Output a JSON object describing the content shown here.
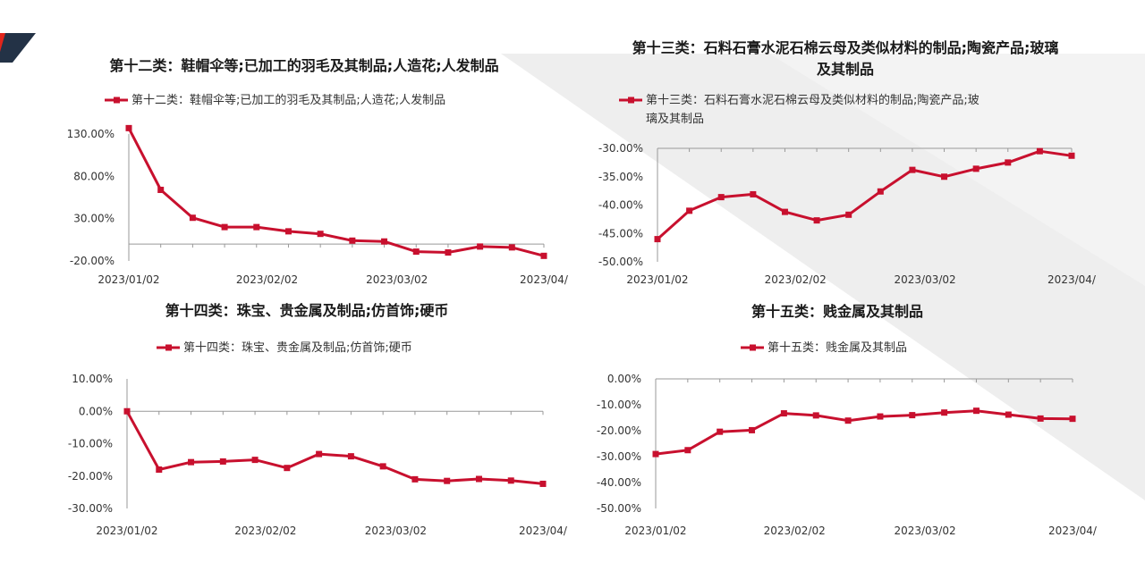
{
  "theme": {
    "series_color": "#c8102e",
    "accent_dark": "#233246",
    "accent_red": "#e1251b"
  },
  "chart_data": [
    {
      "type": "line",
      "title": [
        "第十二类：鞋帽伞等;已加工的羽毛及其制品;人造花;人发制品"
      ],
      "legend": [
        "第十二类：鞋帽伞等;已加工的羽毛及其制品;人造花;人发制品"
      ],
      "x": [
        "2023/01/02",
        "2023/01/09",
        "2023/01/16",
        "2023/01/23",
        "2023/01/30",
        "2023/02/06",
        "2023/02/13",
        "2023/02/20",
        "2023/02/27",
        "2023/03/06",
        "2023/03/13",
        "2023/03/20",
        "2023/03/27",
        "2023/04/03"
      ],
      "x_tick_labels": [
        "2023/01/02",
        "2023/02/02",
        "2023/03/02",
        "2023/04/"
      ],
      "series": [
        {
          "name": "第十二类：鞋帽伞等;已加工的羽毛及其制品;人造花;人发制品",
          "values": [
            137,
            64,
            31,
            20,
            20,
            15,
            12,
            4,
            3,
            -9,
            -10,
            -3,
            -4,
            -14
          ]
        }
      ],
      "ylim": [
        -20,
        130
      ],
      "y_ticks": [
        130,
        80,
        30,
        -20
      ],
      "y_tick_labels": [
        "130.00%",
        "80.00%",
        "30.00%",
        "-20.00%"
      ],
      "baseline": 0
    },
    {
      "type": "line",
      "title": [
        "第十三类：石料石膏水泥石棉云母及类似材料的制品;陶瓷产品;玻璃",
        "及其制品"
      ],
      "legend": [
        "第十三类：石料石膏水泥石棉云母及类似材料的制品;陶瓷产品;玻",
        "璃及其制品"
      ],
      "x": [
        "2023/01/02",
        "2023/01/09",
        "2023/01/16",
        "2023/01/23",
        "2023/01/30",
        "2023/02/06",
        "2023/02/13",
        "2023/02/20",
        "2023/02/27",
        "2023/03/06",
        "2023/03/13",
        "2023/03/20",
        "2023/03/27",
        "2023/04/03"
      ],
      "x_tick_labels": [
        "2023/01/02",
        "2023/02/02",
        "2023/03/02",
        "2023/04/"
      ],
      "series": [
        {
          "name": "第十三类：石料石膏水泥石棉云母及类似材料的制品;陶瓷产品;玻璃及其制品",
          "values": [
            -46,
            -41,
            -38.6,
            -38.1,
            -41.2,
            -42.7,
            -41.7,
            -37.6,
            -33.8,
            -35.0,
            -33.6,
            -32.5,
            -30.5,
            -31.3
          ]
        }
      ],
      "ylim": [
        -50,
        -30
      ],
      "y_ticks": [
        -30,
        -35,
        -40,
        -45,
        -50
      ],
      "y_tick_labels": [
        "-30.00%",
        "-35.00%",
        "-40.00%",
        "-45.00%",
        "-50.00%"
      ]
    },
    {
      "type": "line",
      "title": [
        "第十四类：珠宝、贵金属及制品;仿首饰;硬币"
      ],
      "legend": [
        "第十四类：珠宝、贵金属及制品;仿首饰;硬币"
      ],
      "x": [
        "2023/01/02",
        "2023/01/09",
        "2023/01/16",
        "2023/01/23",
        "2023/01/30",
        "2023/02/06",
        "2023/02/13",
        "2023/02/20",
        "2023/02/27",
        "2023/03/06",
        "2023/03/13",
        "2023/03/20",
        "2023/03/27",
        "2023/04/03"
      ],
      "x_tick_labels": [
        "2023/01/02",
        "2023/02/02",
        "2023/03/02",
        "2023/04/"
      ],
      "series": [
        {
          "name": "第十四类：珠宝、贵金属及制品;仿首饰;硬币",
          "values": [
            0,
            -18,
            -15.7,
            -15.5,
            -15,
            -17.5,
            -13.2,
            -13.9,
            -17,
            -21,
            -21.5,
            -20.9,
            -21.4,
            -22.4
          ]
        }
      ],
      "ylim": [
        -30,
        10
      ],
      "y_ticks": [
        10,
        0,
        -10,
        -20,
        -30
      ],
      "y_tick_labels": [
        "10.00%",
        "0.00%",
        "-10.00%",
        "-20.00%",
        "-30.00%"
      ]
    },
    {
      "type": "line",
      "title": [
        "第十五类：贱金属及其制品"
      ],
      "legend": [
        "第十五类：贱金属及其制品"
      ],
      "x": [
        "2023/01/02",
        "2023/01/09",
        "2023/01/16",
        "2023/01/23",
        "2023/01/30",
        "2023/02/06",
        "2023/02/13",
        "2023/02/20",
        "2023/02/27",
        "2023/03/06",
        "2023/03/13",
        "2023/03/20",
        "2023/03/27",
        "2023/04/03"
      ],
      "x_tick_labels": [
        "2023/01/02",
        "2023/02/02",
        "2023/03/02",
        "2023/04/"
      ],
      "series": [
        {
          "name": "第十五类：贱金属及其制品",
          "values": [
            -29,
            -27.5,
            -20.4,
            -19.8,
            -13.3,
            -14.1,
            -16.1,
            -14.5,
            -14,
            -13,
            -12.3,
            -13.8,
            -15.3,
            -15.4
          ]
        }
      ],
      "ylim": [
        -50,
        0
      ],
      "y_ticks": [
        0,
        -10,
        -20,
        -30,
        -40,
        -50
      ],
      "y_tick_labels": [
        "0.00%",
        "-10.00%",
        "-20.00%",
        "-30.00%",
        "-40.00%",
        "-50.00%"
      ]
    }
  ]
}
